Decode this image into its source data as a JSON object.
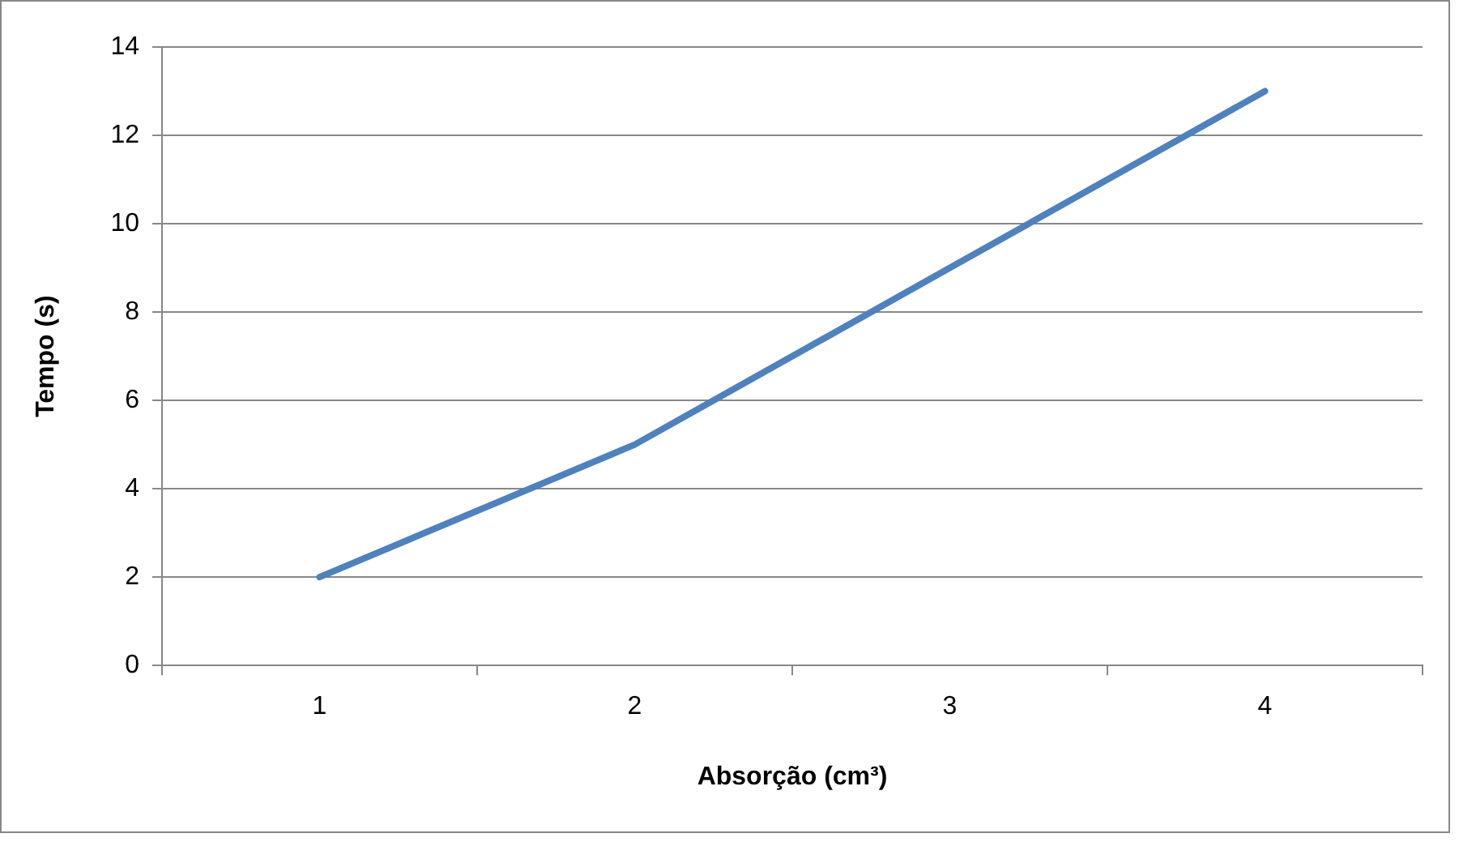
{
  "chart_data": {
    "type": "line",
    "xlabel": "Absorção (cm³)",
    "ylabel": "Tempo (s)",
    "categories": [
      "1",
      "2",
      "3",
      "4"
    ],
    "series": [
      {
        "color": "#4f81bd",
        "values": [
          2,
          5,
          9,
          13
        ]
      }
    ],
    "ylim": [
      0,
      14
    ],
    "yticks": [
      0,
      2,
      4,
      6,
      8,
      10,
      12,
      14
    ],
    "grid": "y",
    "legend": false,
    "marker": "none",
    "line_style": "solid"
  }
}
